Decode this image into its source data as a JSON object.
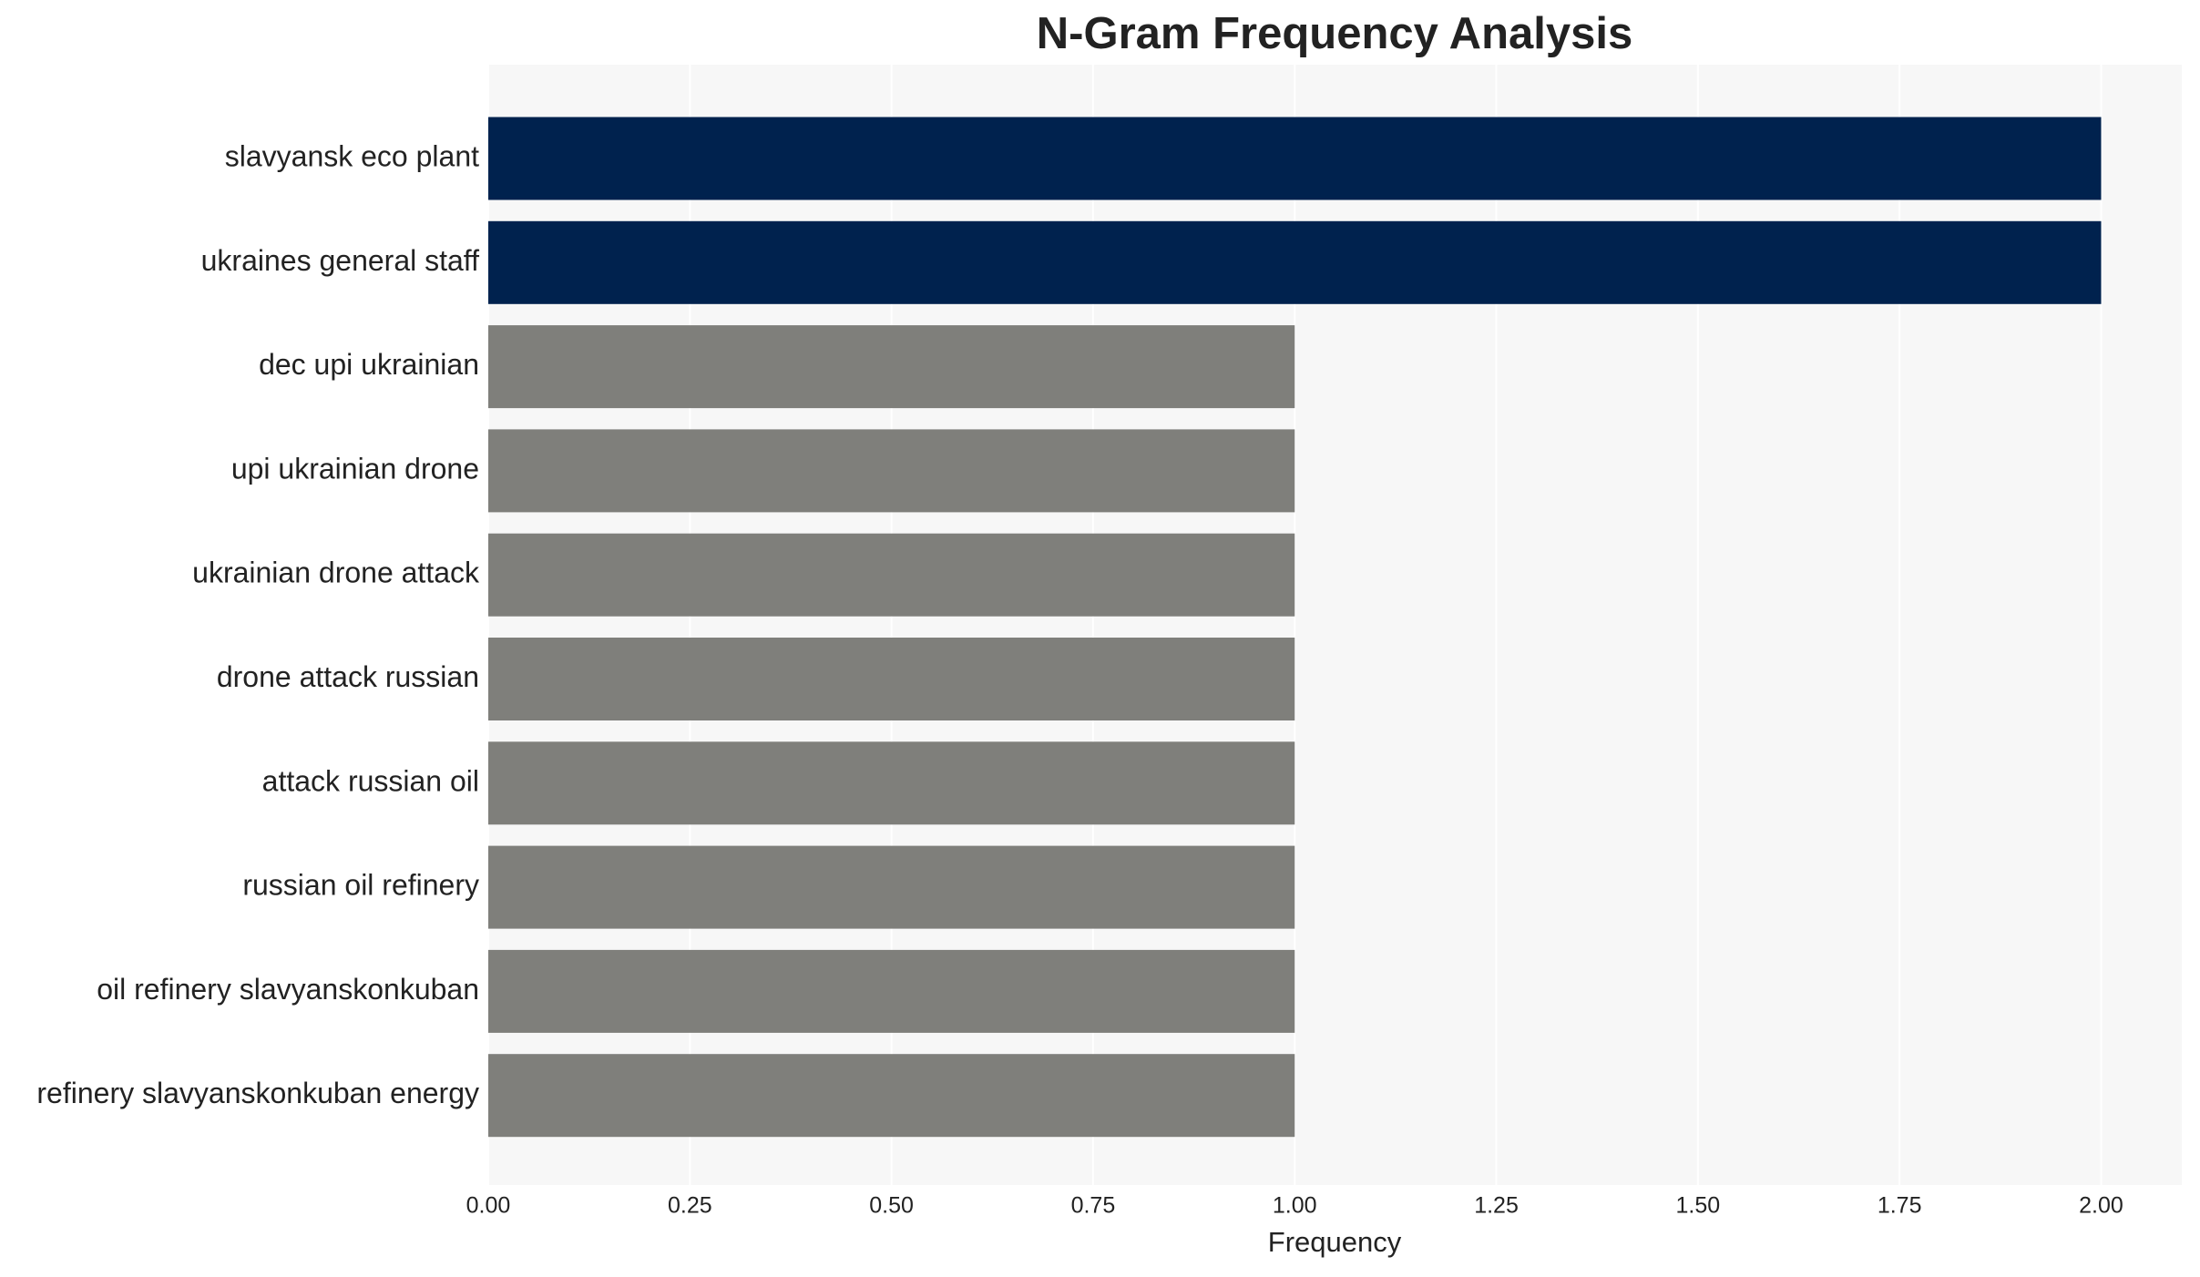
{
  "chart_data": {
    "type": "barh",
    "title": "N-Gram Frequency Analysis",
    "x_label": "Frequency",
    "categories": [
      "slavyansk eco plant",
      "ukraines general staff",
      "dec upi ukrainian",
      "upi ukrainian drone",
      "ukrainian drone attack",
      "drone attack russian",
      "attack russian oil",
      "russian oil refinery",
      "oil refinery slavyanskonkuban",
      "refinery slavyanskonkuban energy"
    ],
    "values": [
      2,
      2,
      1,
      1,
      1,
      1,
      1,
      1,
      1,
      1
    ],
    "colors": [
      "#00224e",
      "#00224e",
      "#7f7f7b",
      "#7f7f7b",
      "#7f7f7b",
      "#7f7f7b",
      "#7f7f7b",
      "#7f7f7b",
      "#7f7f7b",
      "#7f7f7b"
    ],
    "xlim": [
      0,
      2.1
    ],
    "xticks": [
      {
        "value": 0,
        "label": "0.00"
      },
      {
        "value": 0.25,
        "label": "0.25"
      },
      {
        "value": 0.5,
        "label": "0.50"
      },
      {
        "value": 0.75,
        "label": "0.75"
      },
      {
        "value": 1,
        "label": "1.00"
      },
      {
        "value": 1.25,
        "label": "1.25"
      },
      {
        "value": 1.5,
        "label": "1.50"
      },
      {
        "value": 1.75,
        "label": "1.75"
      },
      {
        "value": 2,
        "label": "2.00"
      }
    ],
    "grid": true
  }
}
